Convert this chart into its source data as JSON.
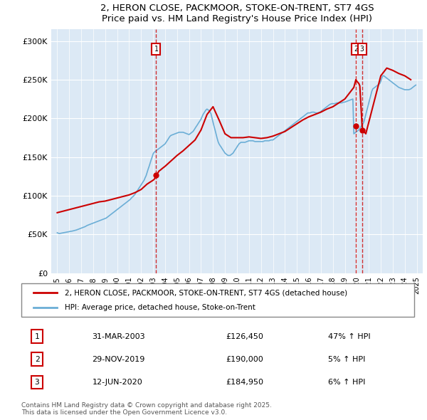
{
  "title": "2, HERON CLOSE, PACKMOOR, STOKE-ON-TRENT, ST7 4GS",
  "subtitle": "Price paid vs. HM Land Registry's House Price Index (HPI)",
  "ylabel_ticks": [
    "£0",
    "£50K",
    "£100K",
    "£150K",
    "£200K",
    "£250K",
    "£300K"
  ],
  "ytick_values": [
    0,
    50000,
    100000,
    150000,
    200000,
    250000,
    300000
  ],
  "ylim": [
    0,
    315000
  ],
  "xlim_start": 1994.5,
  "xlim_end": 2025.5,
  "hpi_color": "#6baed6",
  "property_color": "#cc0000",
  "background_color": "#dce9f5",
  "sale_dates": [
    2003.25,
    2019.92,
    2020.44
  ],
  "sale_prices": [
    126450,
    190000,
    184950
  ],
  "sale_labels": [
    "1",
    "2",
    "3"
  ],
  "legend_property": "2, HERON CLOSE, PACKMOOR, STOKE-ON-TRENT, ST7 4GS (detached house)",
  "legend_hpi": "HPI: Average price, detached house, Stoke-on-Trent",
  "table_rows": [
    [
      "1",
      "31-MAR-2003",
      "£126,450",
      "47% ↑ HPI"
    ],
    [
      "2",
      "29-NOV-2019",
      "£190,000",
      "5% ↑ HPI"
    ],
    [
      "3",
      "12-JUN-2020",
      "£184,950",
      "6% ↑ HPI"
    ]
  ],
  "footnote": "Contains HM Land Registry data © Crown copyright and database right 2025.\nThis data is licensed under the Open Government Licence v3.0.",
  "hpi_data": {
    "years": [
      1995.0,
      1995.08,
      1995.17,
      1995.25,
      1995.33,
      1995.42,
      1995.5,
      1995.58,
      1995.67,
      1995.75,
      1995.83,
      1995.92,
      1996.0,
      1996.08,
      1996.17,
      1996.25,
      1996.33,
      1996.42,
      1996.5,
      1996.58,
      1996.67,
      1996.75,
      1996.83,
      1996.92,
      1997.0,
      1997.08,
      1997.17,
      1997.25,
      1997.33,
      1997.42,
      1997.5,
      1997.58,
      1997.67,
      1997.75,
      1997.83,
      1997.92,
      1998.0,
      1998.08,
      1998.17,
      1998.25,
      1998.33,
      1998.42,
      1998.5,
      1998.58,
      1998.67,
      1998.75,
      1998.83,
      1998.92,
      1999.0,
      1999.08,
      1999.17,
      1999.25,
      1999.33,
      1999.42,
      1999.5,
      1999.58,
      1999.67,
      1999.75,
      1999.83,
      1999.92,
      2000.0,
      2000.08,
      2000.17,
      2000.25,
      2000.33,
      2000.42,
      2000.5,
      2000.58,
      2000.67,
      2000.75,
      2000.83,
      2000.92,
      2001.0,
      2001.08,
      2001.17,
      2001.25,
      2001.33,
      2001.42,
      2001.5,
      2001.58,
      2001.67,
      2001.75,
      2001.83,
      2001.92,
      2002.0,
      2002.08,
      2002.17,
      2002.25,
      2002.33,
      2002.42,
      2002.5,
      2002.58,
      2002.67,
      2002.75,
      2002.83,
      2002.92,
      2003.0,
      2003.08,
      2003.17,
      2003.25,
      2003.33,
      2003.42,
      2003.5,
      2003.58,
      2003.67,
      2003.75,
      2003.83,
      2003.92,
      2004.0,
      2004.08,
      2004.17,
      2004.25,
      2004.33,
      2004.42,
      2004.5,
      2004.58,
      2004.67,
      2004.75,
      2004.83,
      2004.92,
      2005.0,
      2005.08,
      2005.17,
      2005.25,
      2005.33,
      2005.42,
      2005.5,
      2005.58,
      2005.67,
      2005.75,
      2005.83,
      2005.92,
      2006.0,
      2006.08,
      2006.17,
      2006.25,
      2006.33,
      2006.42,
      2006.5,
      2006.58,
      2006.67,
      2006.75,
      2006.83,
      2006.92,
      2007.0,
      2007.08,
      2007.17,
      2007.25,
      2007.33,
      2007.42,
      2007.5,
      2007.58,
      2007.67,
      2007.75,
      2007.83,
      2007.92,
      2008.0,
      2008.08,
      2008.17,
      2008.25,
      2008.33,
      2008.42,
      2008.5,
      2008.58,
      2008.67,
      2008.75,
      2008.83,
      2008.92,
      2009.0,
      2009.08,
      2009.17,
      2009.25,
      2009.33,
      2009.42,
      2009.5,
      2009.58,
      2009.67,
      2009.75,
      2009.83,
      2009.92,
      2010.0,
      2010.08,
      2010.17,
      2010.25,
      2010.33,
      2010.42,
      2010.5,
      2010.58,
      2010.67,
      2010.75,
      2010.83,
      2010.92,
      2011.0,
      2011.08,
      2011.17,
      2011.25,
      2011.33,
      2011.42,
      2011.5,
      2011.58,
      2011.67,
      2011.75,
      2011.83,
      2011.92,
      2012.0,
      2012.08,
      2012.17,
      2012.25,
      2012.33,
      2012.42,
      2012.5,
      2012.58,
      2012.67,
      2012.75,
      2012.83,
      2012.92,
      2013.0,
      2013.08,
      2013.17,
      2013.25,
      2013.33,
      2013.42,
      2013.5,
      2013.58,
      2013.67,
      2013.75,
      2013.83,
      2013.92,
      2014.0,
      2014.08,
      2014.17,
      2014.25,
      2014.33,
      2014.42,
      2014.5,
      2014.58,
      2014.67,
      2014.75,
      2014.83,
      2014.92,
      2015.0,
      2015.08,
      2015.17,
      2015.25,
      2015.33,
      2015.42,
      2015.5,
      2015.58,
      2015.67,
      2015.75,
      2015.83,
      2015.92,
      2016.0,
      2016.08,
      2016.17,
      2016.25,
      2016.33,
      2016.42,
      2016.5,
      2016.58,
      2016.67,
      2016.75,
      2016.83,
      2016.92,
      2017.0,
      2017.08,
      2017.17,
      2017.25,
      2017.33,
      2017.42,
      2017.5,
      2017.58,
      2017.67,
      2017.75,
      2017.83,
      2017.92,
      2018.0,
      2018.08,
      2018.17,
      2018.25,
      2018.33,
      2018.42,
      2018.5,
      2018.58,
      2018.67,
      2018.75,
      2018.83,
      2018.92,
      2019.0,
      2019.08,
      2019.17,
      2019.25,
      2019.33,
      2019.42,
      2019.5,
      2019.58,
      2019.67,
      2019.75,
      2019.83,
      2019.92,
      2020.0,
      2020.08,
      2020.17,
      2020.25,
      2020.33,
      2020.42,
      2020.5,
      2020.58,
      2020.67,
      2020.75,
      2020.83,
      2020.92,
      2021.0,
      2021.08,
      2021.17,
      2021.25,
      2021.33,
      2021.42,
      2021.5,
      2021.58,
      2021.67,
      2021.75,
      2021.83,
      2021.92,
      2022.0,
      2022.08,
      2022.17,
      2022.25,
      2022.33,
      2022.42,
      2022.5,
      2022.58,
      2022.67,
      2022.75,
      2022.83,
      2022.92,
      2023.0,
      2023.08,
      2023.17,
      2023.25,
      2023.33,
      2023.42,
      2023.5,
      2023.58,
      2023.67,
      2023.75,
      2023.83,
      2023.92,
      2024.0,
      2024.08,
      2024.17,
      2024.25,
      2024.33,
      2024.42,
      2024.5,
      2024.58,
      2024.67,
      2024.75,
      2024.83,
      2024.92
    ],
    "values": [
      52000,
      51500,
      51000,
      51200,
      51500,
      51800,
      52000,
      52200,
      52500,
      52800,
      53000,
      53200,
      53500,
      53800,
      54000,
      54200,
      54500,
      54800,
      55200,
      55500,
      56000,
      56500,
      57000,
      57500,
      58000,
      58500,
      59000,
      59500,
      60000,
      60800,
      61500,
      62000,
      62500,
      63000,
      63500,
      64000,
      64500,
      65000,
      65500,
      66000,
      66500,
      67000,
      67500,
      68000,
      68500,
      69000,
      69500,
      70000,
      70500,
      71000,
      72000,
      73000,
      74000,
      75000,
      76000,
      77000,
      78000,
      79000,
      80000,
      81000,
      82000,
      83000,
      84000,
      85000,
      86000,
      87000,
      88000,
      89000,
      90000,
      91000,
      92000,
      93000,
      94000,
      95000,
      96500,
      98000,
      99000,
      100500,
      102000,
      104000,
      106000,
      108000,
      110000,
      112000,
      114000,
      116000,
      118000,
      120000,
      123000,
      126000,
      130000,
      134000,
      138000,
      142000,
      146000,
      150000,
      154000,
      156000,
      157000,
      158000,
      159000,
      160000,
      161000,
      162000,
      163000,
      164000,
      165000,
      166000,
      167000,
      169000,
      171000,
      173000,
      175000,
      177000,
      178000,
      178500,
      179000,
      179500,
      180000,
      180500,
      181000,
      181500,
      182000,
      182000,
      182000,
      182000,
      182000,
      181500,
      181000,
      180500,
      180000,
      179500,
      179000,
      180000,
      181000,
      182000,
      183000,
      185000,
      187000,
      189000,
      191000,
      193000,
      195000,
      197000,
      199000,
      202000,
      205000,
      207000,
      209000,
      211000,
      212000,
      211000,
      210000,
      208000,
      206000,
      200000,
      195000,
      190000,
      185000,
      180000,
      175000,
      170000,
      167000,
      165000,
      163000,
      161000,
      159000,
      157000,
      155000,
      154000,
      153000,
      152000,
      152000,
      152000,
      153000,
      154000,
      155000,
      157000,
      159000,
      161000,
      163000,
      165000,
      167000,
      168000,
      169000,
      169000,
      169000,
      169000,
      169000,
      169500,
      170000,
      170500,
      171000,
      171000,
      171000,
      171000,
      171000,
      170500,
      170000,
      170000,
      170000,
      170000,
      170000,
      170000,
      170000,
      170000,
      170000,
      170500,
      171000,
      171000,
      171000,
      171000,
      171000,
      171500,
      172000,
      172000,
      172000,
      173000,
      174000,
      175000,
      176000,
      177000,
      178000,
      179000,
      180000,
      181000,
      182000,
      183000,
      184000,
      185000,
      186000,
      187000,
      188000,
      189000,
      190000,
      191000,
      192000,
      193000,
      194000,
      195000,
      196000,
      197000,
      198000,
      199000,
      200000,
      201000,
      202000,
      203000,
      204000,
      205000,
      206000,
      207000,
      207000,
      207000,
      207500,
      208000,
      208000,
      208000,
      207500,
      207000,
      207000,
      207000,
      207500,
      208000,
      209000,
      210000,
      211000,
      212000,
      213000,
      214000,
      215000,
      216000,
      217000,
      218000,
      218500,
      219000,
      219000,
      219000,
      219000,
      219500,
      220000,
      220000,
      220000,
      220000,
      220000,
      220000,
      220500,
      221000,
      221000,
      221500,
      222000,
      222500,
      223000,
      223500,
      224000,
      224500,
      225000,
      180000,
      181000,
      182000,
      183000,
      184000,
      185000,
      187000,
      189000,
      191000,
      193000,
      195000,
      200000,
      205000,
      210000,
      215000,
      220000,
      225000,
      230000,
      235000,
      238000,
      239000,
      240000,
      241000,
      242000,
      243000,
      244000,
      245000,
      248000,
      252000,
      255000,
      255000,
      254000,
      253000,
      252000,
      251000,
      250000,
      249000,
      248000,
      247000,
      246000,
      245000,
      244000,
      243000,
      242000,
      241000,
      240000,
      239500,
      239000,
      238500,
      238000,
      237500,
      237000,
      237000,
      237000,
      237000,
      237000,
      237500,
      238000,
      239000,
      240000,
      241000,
      242000,
      243000
    ]
  },
  "property_data": {
    "years": [
      1995.0,
      1995.5,
      1996.0,
      1996.5,
      1997.0,
      1997.5,
      1998.0,
      1998.5,
      1999.0,
      1999.5,
      2000.0,
      2000.5,
      2001.0,
      2001.5,
      2002.0,
      2002.5,
      2003.0,
      2003.08,
      2003.17,
      2003.25,
      2003.33,
      2003.42,
      2003.5,
      2003.6,
      2003.75,
      2004.0,
      2004.5,
      2005.0,
      2005.5,
      2006.0,
      2006.5,
      2007.0,
      2007.5,
      2008.0,
      2008.5,
      2009.0,
      2009.5,
      2010.0,
      2010.5,
      2011.0,
      2011.5,
      2012.0,
      2012.5,
      2013.0,
      2013.5,
      2014.0,
      2014.5,
      2015.0,
      2015.5,
      2016.0,
      2016.5,
      2017.0,
      2017.5,
      2018.0,
      2018.5,
      2019.0,
      2019.5,
      2019.75,
      2019.92,
      2020.0,
      2020.17,
      2020.25,
      2020.44,
      2020.5,
      2020.75,
      2021.0,
      2021.5,
      2022.0,
      2022.5,
      2023.0,
      2023.5,
      2024.0,
      2024.5
    ],
    "values": [
      78000,
      80000,
      82000,
      84000,
      86000,
      88000,
      90000,
      92000,
      93000,
      95000,
      97000,
      99000,
      101000,
      104000,
      108000,
      115000,
      120000,
      121000,
      123000,
      126450,
      128000,
      130000,
      132000,
      133000,
      135000,
      138000,
      145000,
      152000,
      158000,
      165000,
      172000,
      185000,
      205000,
      215000,
      198000,
      180000,
      175000,
      175000,
      175000,
      176000,
      175000,
      174000,
      175000,
      177000,
      180000,
      183000,
      188000,
      193000,
      198000,
      202000,
      205000,
      208000,
      212000,
      215000,
      220000,
      225000,
      235000,
      240000,
      250000,
      248000,
      245000,
      242000,
      190000,
      185000,
      180000,
      195000,
      225000,
      255000,
      265000,
      262000,
      258000,
      255000,
      250000
    ]
  }
}
